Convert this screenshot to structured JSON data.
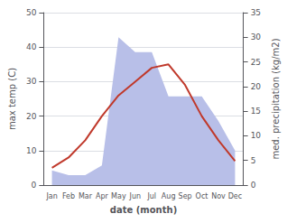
{
  "chart_data": {
    "type": "line",
    "categories": [
      "Jan",
      "Feb",
      "Mar",
      "Apr",
      "May",
      "Jun",
      "Jul",
      "Aug",
      "Sep",
      "Oct",
      "Nov",
      "Dec"
    ],
    "xlabel": "date (month)",
    "ylabel": "max temp (C)",
    "y2label": "med. precipitation (kg/m2)",
    "ylim": [
      0,
      50
    ],
    "yticks": [
      0,
      10,
      20,
      30,
      40,
      50
    ],
    "y2lim": [
      0,
      35
    ],
    "y2ticks": [
      0,
      5,
      10,
      15,
      20,
      25,
      30,
      35
    ],
    "grid": true,
    "series": [
      {
        "type": "area",
        "axis": "y2",
        "color": "#b8bfe8",
        "values": [
          3,
          2,
          2,
          4,
          30,
          27,
          27,
          18,
          18,
          18,
          13,
          7
        ]
      },
      {
        "type": "line",
        "color": "#c0392b",
        "values": [
          5,
          8,
          13,
          20,
          26,
          30,
          34,
          35,
          29,
          20,
          13,
          7
        ]
      }
    ]
  }
}
